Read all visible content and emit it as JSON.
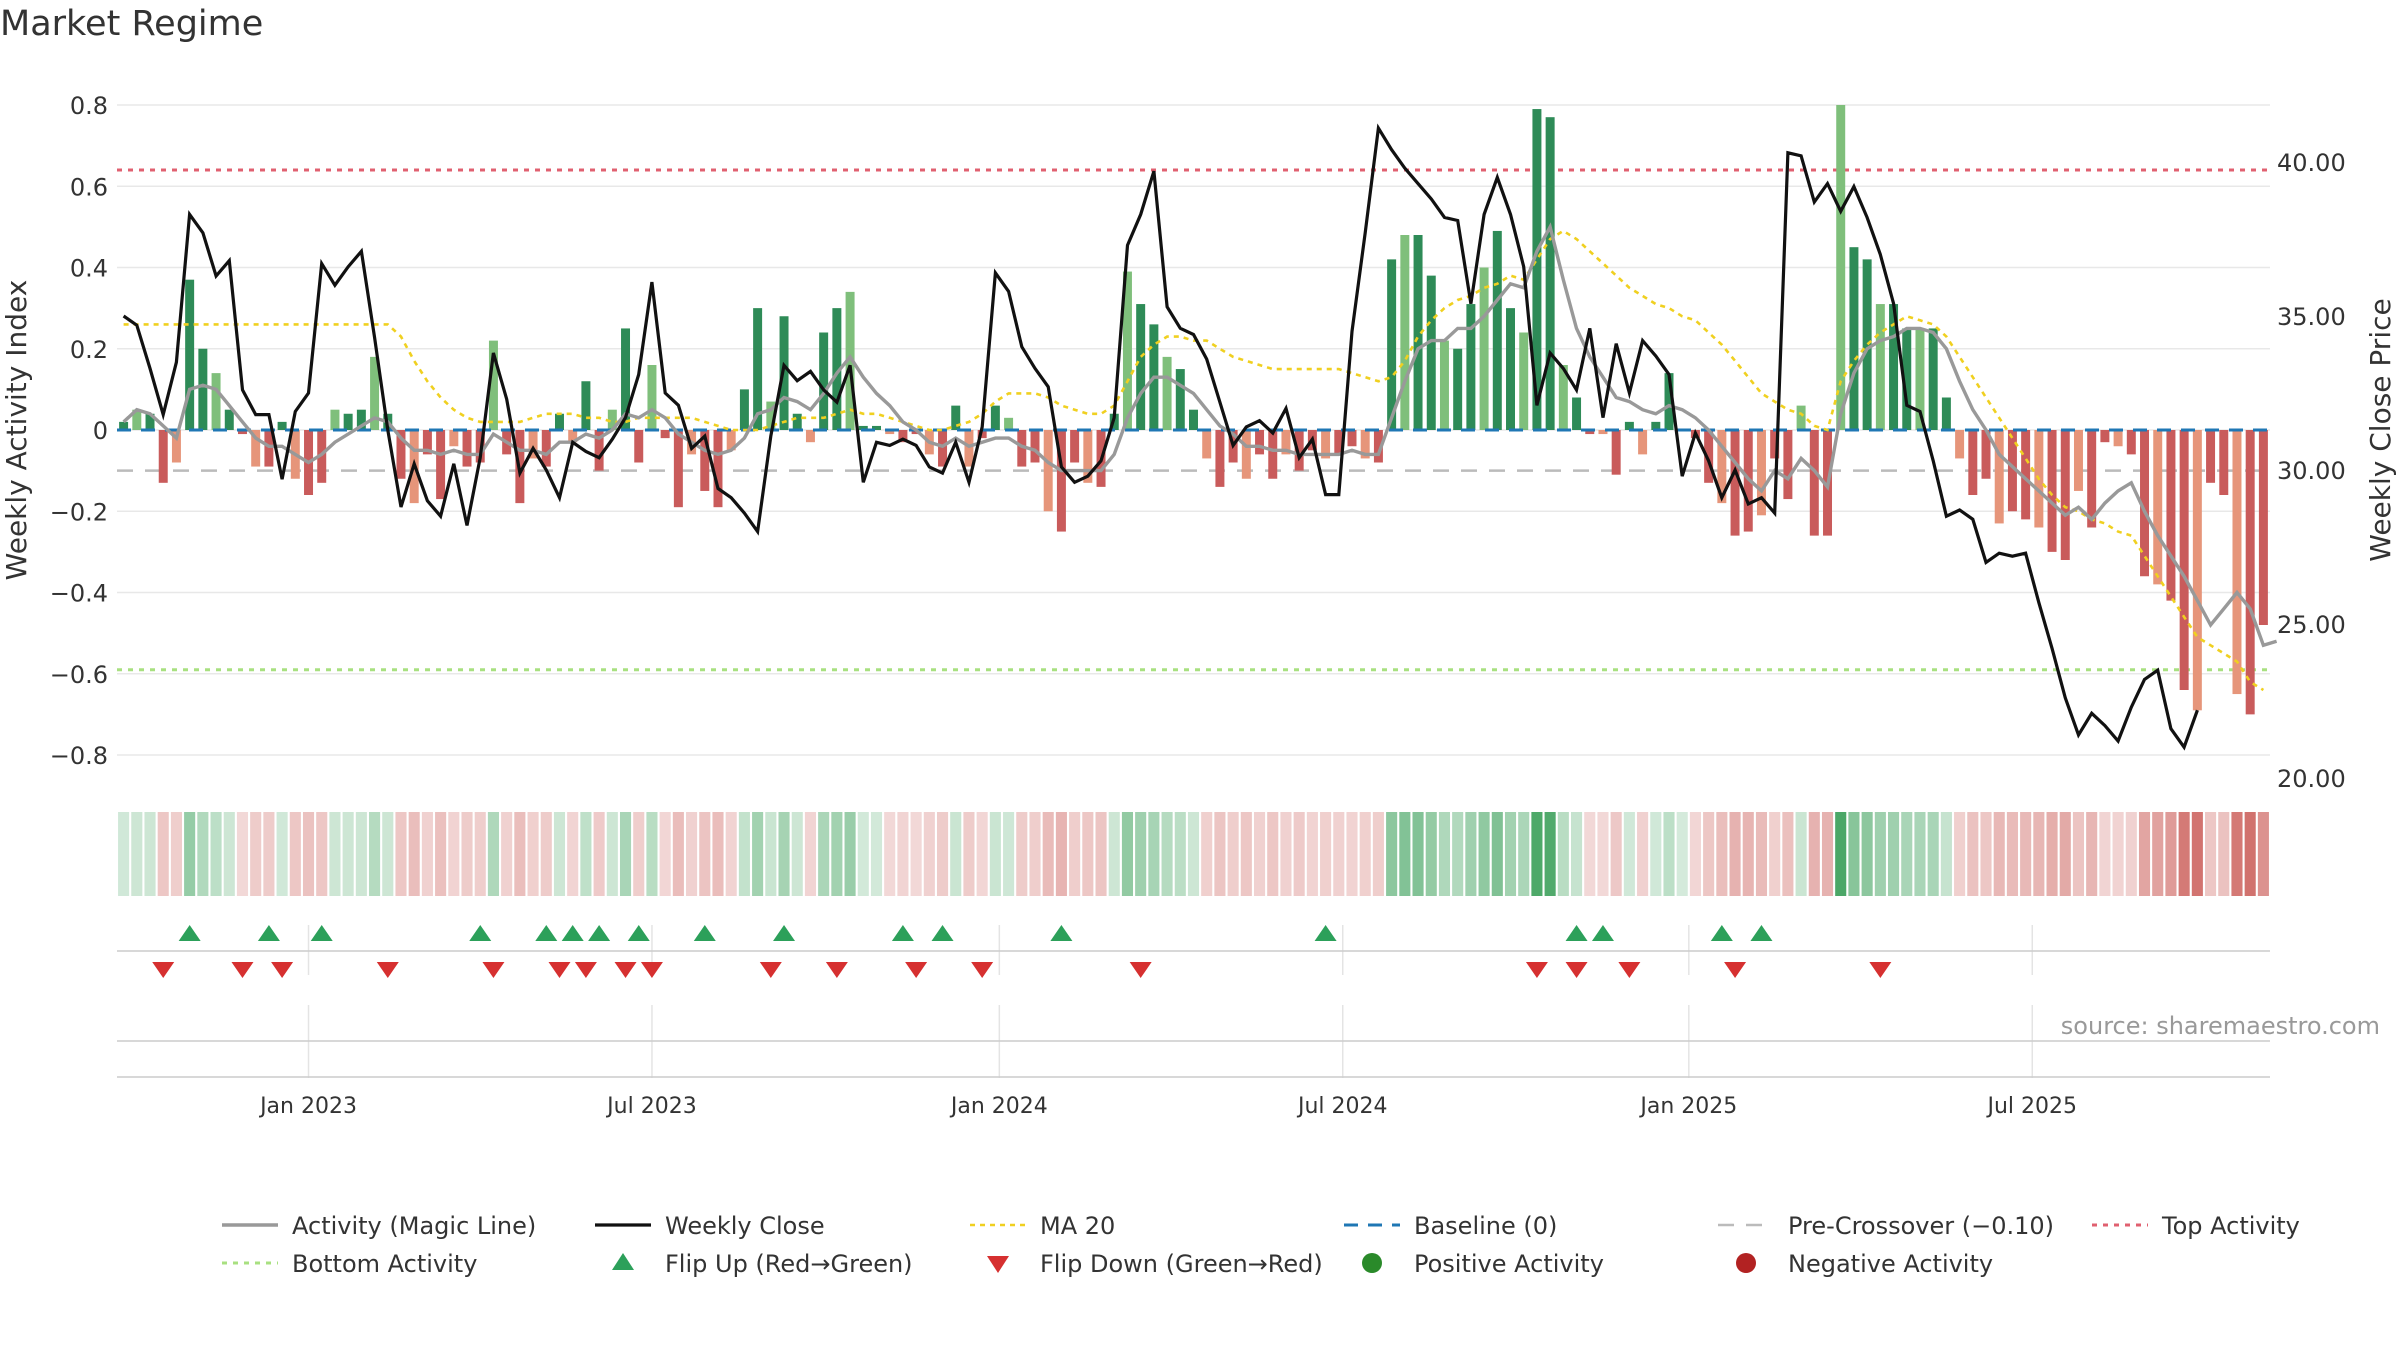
{
  "title": "Market Regime",
  "source": "source: sharemaestro.com",
  "colors": {
    "pos_dark": "#2e8b57",
    "pos_light": "#7fbf7b",
    "neg_dark": "#c95b5b",
    "neg_light": "#e6957a",
    "magic": "#999999",
    "close": "#111111",
    "ma20": "#f0d020",
    "baseline": "#1f77b4",
    "precross": "#bbbbbb",
    "top": "#e06070",
    "bottom": "#a8e080",
    "flip_up": "#2ca05a",
    "flip_down": "#d63030"
  },
  "chart_data": {
    "type": "bar",
    "ylabel_left": "Weekly Activity Index",
    "ylabel_right": "Weekly Close Price",
    "ylim_left": [
      -0.86,
      0.82
    ],
    "ylim_right": [
      20,
      42
    ],
    "yticks_left": [
      "0.8",
      "0.6",
      "0.4",
      "0.2",
      "0",
      "−0.2",
      "−0.4",
      "−0.6",
      "−0.8"
    ],
    "yticks_left_values": [
      0.8,
      0.6,
      0.4,
      0.2,
      0,
      -0.2,
      -0.4,
      -0.6,
      -0.8
    ],
    "yticks_right": [
      "40.00",
      "35.00",
      "30.00",
      "25.00",
      "20.00"
    ],
    "yticks_right_values": [
      40,
      35,
      30,
      25,
      20
    ],
    "xticks": [
      "Jan 2023",
      "Jul 2023",
      "Jan 2024",
      "Jul 2024",
      "Jan 2025",
      "Jul 2025"
    ],
    "xticks_weeks": [
      14.5,
      40.5,
      66.8,
      92.8,
      119,
      145
    ],
    "reference_lines": {
      "baseline": 0,
      "pre_crossover": -0.1,
      "top_activity": 0.64,
      "bottom_activity": -0.59
    },
    "activity": [
      0.02,
      0.05,
      0.04,
      -0.13,
      -0.08,
      0.37,
      0.2,
      0.14,
      0.05,
      -0.01,
      -0.09,
      -0.09,
      0.02,
      -0.12,
      -0.16,
      -0.13,
      0.05,
      0.04,
      0.05,
      0.18,
      0.04,
      -0.12,
      -0.18,
      -0.06,
      -0.17,
      -0.04,
      -0.09,
      -0.08,
      0.22,
      -0.06,
      -0.18,
      -0.07,
      -0.09,
      0.04,
      -0.03,
      0.12,
      -0.1,
      0.05,
      0.25,
      -0.08,
      0.16,
      -0.02,
      -0.19,
      -0.06,
      -0.15,
      -0.19,
      -0.05,
      0.1,
      0.3,
      0.07,
      0.28,
      0.04,
      -0.03,
      0.24,
      0.3,
      0.34,
      0.01,
      0.01,
      -0.01,
      -0.03,
      -0.01,
      -0.06,
      -0.09,
      0.06,
      -0.09,
      -0.02,
      0.06,
      0.03,
      -0.09,
      -0.08,
      -0.2,
      -0.25,
      -0.08,
      -0.13,
      -0.14,
      0.04,
      0.39,
      0.31,
      0.26,
      0.18,
      0.15,
      0.05,
      -0.07,
      -0.14,
      -0.08,
      -0.12,
      -0.06,
      -0.12,
      -0.06,
      -0.1,
      -0.05,
      -0.07,
      -0.06,
      -0.04,
      -0.07,
      -0.08,
      0.42,
      0.48,
      0.48,
      0.38,
      0.22,
      0.2,
      0.31,
      0.4,
      0.49,
      0.3,
      0.24,
      0.79,
      0.77,
      0.16,
      0.08,
      -0.01,
      -0.01,
      -0.11,
      0.02,
      -0.06,
      0.02,
      0.14,
      0,
      -0.02,
      -0.13,
      -0.18,
      -0.26,
      -0.25,
      -0.21,
      -0.07,
      -0.17,
      0.06,
      -0.26,
      -0.26,
      0.8,
      0.45,
      0.42,
      0.31,
      0.31,
      0.25,
      0.25,
      0.25,
      0.08,
      -0.07,
      -0.16,
      -0.12,
      -0.23,
      -0.2,
      -0.22,
      -0.24,
      -0.3,
      -0.32,
      -0.15,
      -0.24,
      -0.03,
      -0.04,
      -0.06,
      -0.36,
      -0.38,
      -0.42,
      -0.64,
      -0.69,
      -0.13,
      -0.16,
      -0.65,
      -0.7,
      -0.48
    ],
    "magic_line": [
      0.02,
      0.05,
      0.04,
      0.01,
      -0.02,
      0.1,
      0.11,
      0.1,
      0.06,
      0.02,
      -0.02,
      -0.04,
      -0.04,
      -0.06,
      -0.08,
      -0.06,
      -0.03,
      -0.01,
      0.01,
      0.03,
      0.02,
      -0.02,
      -0.05,
      -0.05,
      -0.06,
      -0.05,
      -0.06,
      -0.06,
      -0.01,
      -0.03,
      -0.05,
      -0.05,
      -0.06,
      -0.03,
      -0.03,
      -0.01,
      -0.02,
      0,
      0.04,
      0.03,
      0.05,
      0.03,
      -0.01,
      -0.03,
      -0.05,
      -0.06,
      -0.05,
      -0.02,
      0.04,
      0.05,
      0.08,
      0.07,
      0.05,
      0.09,
      0.14,
      0.18,
      0.13,
      0.09,
      0.06,
      0.02,
      0,
      -0.03,
      -0.04,
      -0.02,
      -0.04,
      -0.03,
      -0.02,
      -0.02,
      -0.04,
      -0.05,
      -0.08,
      -0.1,
      -0.1,
      -0.1,
      -0.1,
      -0.06,
      0.03,
      0.09,
      0.13,
      0.13,
      0.11,
      0.09,
      0.05,
      0.01,
      -0.01,
      -0.04,
      -0.04,
      -0.05,
      -0.05,
      -0.06,
      -0.06,
      -0.06,
      -0.06,
      -0.05,
      -0.06,
      -0.06,
      0.03,
      0.12,
      0.2,
      0.22,
      0.22,
      0.25,
      0.25,
      0.28,
      0.32,
      0.36,
      0.35,
      0.44,
      0.5,
      0.37,
      0.25,
      0.18,
      0.13,
      0.08,
      0.07,
      0.05,
      0.04,
      0.06,
      0.05,
      0.03,
      0,
      -0.04,
      -0.08,
      -0.12,
      -0.15,
      -0.1,
      -0.12,
      -0.07,
      -0.1,
      -0.14,
      0.04,
      0.14,
      0.2,
      0.22,
      0.23,
      0.25,
      0.25,
      0.24,
      0.2,
      0.12,
      0.05,
      0,
      -0.06,
      -0.09,
      -0.12,
      -0.15,
      -0.18,
      -0.21,
      -0.19,
      -0.22,
      -0.18,
      -0.15,
      -0.13,
      -0.2,
      -0.26,
      -0.31,
      -0.36,
      -0.42,
      -0.48,
      -0.44,
      -0.4,
      -0.44,
      -0.53,
      -0.52
    ],
    "weekly_close": [
      35,
      34.7,
      33.3,
      31.8,
      33.5,
      38.3,
      37.7,
      36.3,
      36.8,
      32.6,
      31.8,
      31.8,
      29.7,
      31.9,
      32.5,
      36.7,
      36,
      36.6,
      37.1,
      34.3,
      31.3,
      28.8,
      30.2,
      29,
      28.5,
      30.2,
      28.2,
      30.4,
      33.8,
      32.3,
      29.9,
      30.7,
      30,
      29.1,
      30.9,
      30.6,
      30.4,
      31,
      31.7,
      33.1,
      36.1,
      32.5,
      32.1,
      30.7,
      31.1,
      29.4,
      29.1,
      28.6,
      28,
      31.1,
      33.4,
      32.9,
      33.2,
      32.6,
      32.2,
      33.4,
      29.6,
      30.9,
      30.8,
      31,
      30.8,
      30.1,
      29.9,
      30.9,
      29.6,
      31.4,
      36.4,
      35.8,
      34,
      33.3,
      32.7,
      30.1,
      29.6,
      29.8,
      30.3,
      31.7,
      37.3,
      38.3,
      39.7,
      35.3,
      34.6,
      34.4,
      33.6,
      32.2,
      30.8,
      31.4,
      31.6,
      31.2,
      32,
      30.4,
      31,
      29.2,
      29.2,
      34.5,
      37.7,
      41.1,
      40.4,
      39.8,
      39.3,
      38.8,
      38.2,
      38.1,
      35.4,
      38.3,
      39.5,
      38.3,
      36.6,
      32.1,
      33.8,
      33.3,
      32.6,
      34.6,
      31.7,
      34.1,
      32.5,
      34.2,
      33.7,
      33.1,
      29.8,
      31.2,
      30.3,
      29.1,
      30,
      28.9,
      29.1,
      28.6,
      40.3,
      40.2,
      38.7,
      39.3,
      38.4,
      39.2,
      38.2,
      37,
      35.4,
      32.1,
      31.9,
      30.3,
      28.5,
      28.7,
      28.4,
      27,
      27.3,
      27.2,
      27.3,
      25.7,
      24.2,
      22.6,
      21.4,
      22.1,
      21.7,
      21.2,
      22.3,
      23.2,
      23.5,
      21.6,
      21,
      22.2
    ],
    "ma20": [
      0.26,
      0.26,
      0.26,
      0.26,
      0.26,
      0.26,
      0.26,
      0.26,
      0.26,
      0.26,
      0.26,
      0.26,
      0.26,
      0.26,
      0.26,
      0.26,
      0.26,
      0.26,
      0.26,
      0.26,
      0.26,
      0.23,
      0.17,
      0.12,
      0.08,
      0.05,
      0.03,
      0.02,
      0.02,
      0.02,
      0.02,
      0.03,
      0.04,
      0.04,
      0.04,
      0.03,
      0.03,
      0.02,
      0.02,
      0.03,
      0.03,
      0.03,
      0.03,
      0.03,
      0.02,
      0.01,
      0,
      0,
      0,
      0.01,
      0.02,
      0.03,
      0.03,
      0.03,
      0.04,
      0.05,
      0.04,
      0.04,
      0.03,
      0.02,
      0.01,
      0,
      0,
      0.01,
      0.02,
      0.04,
      0.07,
      0.09,
      0.09,
      0.09,
      0.08,
      0.06,
      0.05,
      0.04,
      0.04,
      0.06,
      0.12,
      0.18,
      0.21,
      0.23,
      0.23,
      0.22,
      0.22,
      0.2,
      0.18,
      0.17,
      0.16,
      0.15,
      0.15,
      0.15,
      0.15,
      0.15,
      0.15,
      0.14,
      0.13,
      0.12,
      0.13,
      0.17,
      0.23,
      0.27,
      0.3,
      0.32,
      0.33,
      0.35,
      0.36,
      0.38,
      0.37,
      0.42,
      0.47,
      0.49,
      0.47,
      0.44,
      0.41,
      0.38,
      0.35,
      0.33,
      0.31,
      0.3,
      0.28,
      0.27,
      0.24,
      0.21,
      0.17,
      0.13,
      0.09,
      0.07,
      0.05,
      0.04,
      0.01,
      0,
      0.12,
      0.17,
      0.21,
      0.24,
      0.26,
      0.28,
      0.27,
      0.26,
      0.23,
      0.18,
      0.13,
      0.08,
      0.03,
      -0.02,
      -0.07,
      -0.12,
      -0.16,
      -0.19,
      -0.2,
      -0.22,
      -0.23,
      -0.25,
      -0.26,
      -0.31,
      -0.36,
      -0.41,
      -0.46,
      -0.51,
      -0.53,
      -0.55,
      -0.57,
      -0.62,
      -0.64
    ],
    "flip_up_weeks": [
      5,
      11,
      15,
      27,
      32,
      34,
      36,
      39,
      44,
      50,
      59,
      62,
      71,
      91,
      110,
      112,
      121,
      124
    ],
    "flip_down_weeks": [
      3,
      9,
      12,
      20,
      28,
      33,
      35,
      38,
      40,
      49,
      54,
      60,
      65,
      77,
      107,
      110,
      114,
      122,
      133
    ],
    "series": [
      {
        "name": "Activity (Magic Line)"
      },
      {
        "name": "Weekly Close"
      },
      {
        "name": "MA 20"
      },
      {
        "name": "Baseline (0)"
      },
      {
        "name": "Pre-Crossover (−0.10)"
      },
      {
        "name": "Top Activity"
      },
      {
        "name": "Bottom Activity"
      },
      {
        "name": "Flip Up (Red→Green)"
      },
      {
        "name": "Flip Down (Green→Red)"
      },
      {
        "name": "Positive Activity"
      },
      {
        "name": "Negative Activity"
      }
    ],
    "legend_position": "bottom"
  }
}
